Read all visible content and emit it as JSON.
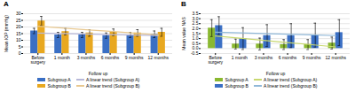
{
  "chart_data": [
    {
      "type": "bar",
      "title": "A",
      "xlabel": "Follow up",
      "ylabel": "Mean IOP (mmHg)",
      "categories": [
        "Before\nsurgery",
        "1 month",
        "3 months",
        "6 months",
        "9 months",
        "12 months"
      ],
      "series": [
        {
          "name": "Subgroup A",
          "type": "bar",
          "color": "#3a6fc4",
          "values": [
            17.0,
            14.0,
            14.0,
            13.5,
            14.0,
            14.5
          ],
          "errors": [
            2.0,
            2.0,
            2.0,
            2.0,
            2.0,
            2.5
          ]
        },
        {
          "name": "Subgroup B",
          "type": "bar",
          "color": "#e8a820",
          "values": [
            24.5,
            16.5,
            15.5,
            16.0,
            15.5,
            16.0
          ],
          "errors": [
            3.5,
            2.5,
            2.5,
            2.5,
            2.5,
            3.0
          ]
        },
        {
          "name": "A linear trend (Subgroup A)",
          "type": "line",
          "color": "#b8b8d8",
          "values": [
            15.428571,
            15.057143,
            14.685714,
            14.314286,
            13.942857,
            13.571429
          ]
        },
        {
          "name": "A linear trend (Subgroup B)",
          "type": "line",
          "color": "#e8c890",
          "values": [
            20.547619,
            19.261905,
            17.97619,
            16.690476,
            15.404762,
            14.119048
          ]
        }
      ],
      "ylim": [
        0,
        30
      ],
      "yticks": [
        0,
        5,
        10,
        15,
        20,
        25,
        30
      ],
      "grid": true,
      "legend": "bottom"
    },
    {
      "type": "bar",
      "title": "B",
      "xlabel": "Follow up",
      "ylabel": "Mean value NAS",
      "categories": [
        "Before\nsurgery",
        "1 month",
        "3 months",
        "6 months",
        "9 months",
        "12 months"
      ],
      "series": [
        {
          "name": "Subgroup A",
          "type": "bar",
          "color": "#8ab830",
          "values": [
            2.05,
            0.45,
            0.45,
            0.4,
            0.4,
            0.55
          ],
          "errors": [
            0.85,
            0.5,
            0.6,
            0.5,
            0.5,
            0.6
          ]
        },
        {
          "name": "Subgroup B",
          "type": "bar",
          "color": "#3a6fc4",
          "values": [
            2.3,
            1.0,
            1.3,
            1.3,
            1.35,
            1.6
          ],
          "errors": [
            0.9,
            1.1,
            1.1,
            1.2,
            1.2,
            1.3
          ]
        },
        {
          "name": "A linear trend (Subgroup A)",
          "type": "line",
          "color": "#c8d870",
          "values": [
            1.266667,
            1.046667,
            0.826667,
            0.606667,
            0.386667,
            0.166667
          ]
        },
        {
          "name": "A linear trend (Subgroup B)",
          "type": "line",
          "color": "#90b8d8",
          "values": [
            1.65,
            1.58,
            1.51,
            1.44,
            1.37,
            1.3
          ]
        }
      ],
      "ylim": [
        -0.5,
        3.5
      ],
      "yticks": [
        -0.5,
        {
          "value": 0,
          "label": "0.0"
        },
        0.5,
        {
          "value": 1,
          "label": "1.0"
        },
        1.5,
        {
          "value": 2,
          "label": "2.0"
        },
        2.5,
        {
          "value": 3,
          "label": "3.0"
        },
        3.5
      ],
      "grid": true,
      "legend": "bottom"
    }
  ]
}
